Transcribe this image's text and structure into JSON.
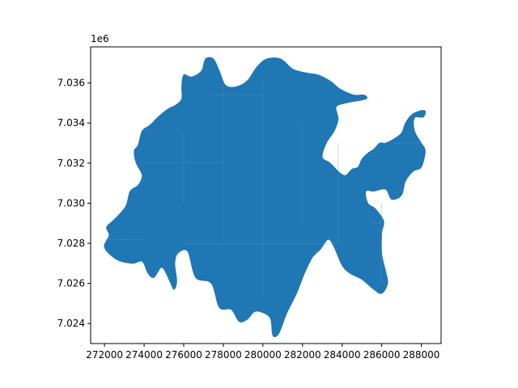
{
  "figure": {
    "offset_text": "1e6",
    "fill_color": "#1f77b4",
    "tile_line_color": "#5a9bc9",
    "axes_color": "#000000",
    "background": "#ffffff"
  },
  "chart_data": {
    "type": "map",
    "title": "",
    "xlabel": "",
    "ylabel": "",
    "xlim": [
      271300,
      289000
    ],
    "ylim": [
      7.023,
      7.0378
    ],
    "y_offset_text": "1e6",
    "x_ticks": [
      {
        "value": 272000,
        "label": "272000"
      },
      {
        "value": 274000,
        "label": "274000"
      },
      {
        "value": 276000,
        "label": "276000"
      },
      {
        "value": 278000,
        "label": "278000"
      },
      {
        "value": 280000,
        "label": "280000"
      },
      {
        "value": 282000,
        "label": "282000"
      },
      {
        "value": 284000,
        "label": "284000"
      },
      {
        "value": 286000,
        "label": "286000"
      },
      {
        "value": 288000,
        "label": "288000"
      }
    ],
    "y_ticks": [
      {
        "value": 7.024,
        "label": "7.024"
      },
      {
        "value": 7.026,
        "label": "7.026"
      },
      {
        "value": 7.028,
        "label": "7.028"
      },
      {
        "value": 7.03,
        "label": "7.030"
      },
      {
        "value": 7.032,
        "label": "7.032"
      },
      {
        "value": 7.034,
        "label": "7.034"
      },
      {
        "value": 7.036,
        "label": "7.036"
      }
    ],
    "region": {
      "name": "region-polygon",
      "boundary_xy": [
        [
          272230,
          7.0284
        ],
        [
          272500,
          7.0288
        ],
        [
          273200,
          7.0284
        ],
        [
          273900,
          7.0283
        ],
        [
          274300,
          7.0286
        ],
        [
          274450,
          7.0291
        ],
        [
          274420,
          7.0299
        ],
        [
          274150,
          7.0304
        ],
        [
          274100,
          7.031
        ],
        [
          274330,
          7.0315
        ],
        [
          274450,
          7.0323
        ],
        [
          274250,
          7.0326
        ],
        [
          273800,
          7.0325
        ],
        [
          273750,
          7.032
        ],
        [
          273900,
          7.0314
        ],
        [
          274000,
          7.0307
        ],
        [
          273900,
          7.0299
        ],
        [
          273850,
          7.0295
        ],
        [
          274200,
          7.0291
        ],
        [
          274000,
          7.0288
        ],
        [
          273300,
          7.0287
        ],
        [
          272500,
          7.0282
        ]
      ],
      "outline_xy": [
        [
          272230,
          7.0284
        ],
        [
          272000,
          7.0278
        ],
        [
          272600,
          7.0272
        ],
        [
          273400,
          7.027
        ],
        [
          273900,
          7.0271
        ],
        [
          274200,
          7.0265
        ],
        [
          274500,
          7.0263
        ],
        [
          274900,
          7.0268
        ],
        [
          275300,
          7.0261
        ],
        [
          275500,
          7.0257
        ],
        [
          275650,
          7.0261
        ],
        [
          275550,
          7.027
        ],
        [
          275700,
          7.0275
        ],
        [
          276200,
          7.0276
        ],
        [
          276600,
          7.0263
        ],
        [
          277400,
          7.026
        ],
        [
          277800,
          7.0248
        ],
        [
          278400,
          7.0247
        ],
        [
          278800,
          7.0241
        ],
        [
          279200,
          7.0242
        ],
        [
          279600,
          7.0246
        ],
        [
          280100,
          7.0245
        ],
        [
          280400,
          7.0242
        ],
        [
          280500,
          7.0234
        ],
        [
          280800,
          7.0235
        ],
        [
          281200,
          7.0245
        ],
        [
          281700,
          7.0255
        ],
        [
          282100,
          7.0265
        ],
        [
          282500,
          7.0273
        ],
        [
          282900,
          7.0277
        ],
        [
          283300,
          7.0282
        ],
        [
          283600,
          7.0278
        ],
        [
          284000,
          7.0269
        ],
        [
          284400,
          7.0265
        ],
        [
          285000,
          7.0262
        ],
        [
          285600,
          7.0257
        ],
        [
          286000,
          7.0255
        ],
        [
          286300,
          7.026
        ],
        [
          286200,
          7.0266
        ],
        [
          286000,
          7.0275
        ],
        [
          286000,
          7.0285
        ],
        [
          286100,
          7.0291
        ],
        [
          285700,
          7.0297
        ],
        [
          285300,
          7.03
        ],
        [
          285200,
          7.0306
        ],
        [
          285600,
          7.0306
        ],
        [
          286200,
          7.0307
        ],
        [
          286500,
          7.0302
        ],
        [
          287000,
          7.0304
        ],
        [
          287200,
          7.0311
        ],
        [
          287600,
          7.0316
        ],
        [
          288000,
          7.0318
        ],
        [
          288200,
          7.0326
        ],
        [
          288000,
          7.033
        ],
        [
          287700,
          7.0335
        ],
        [
          287600,
          7.034
        ],
        [
          287700,
          7.0343
        ],
        [
          288100,
          7.0343
        ],
        [
          288200,
          7.0346
        ],
        [
          287900,
          7.0346
        ],
        [
          287500,
          7.0344
        ],
        [
          287200,
          7.034
        ],
        [
          287000,
          7.0335
        ],
        [
          286600,
          7.0332
        ],
        [
          286200,
          7.033
        ],
        [
          285900,
          7.033
        ],
        [
          285600,
          7.0327
        ],
        [
          285300,
          7.0325
        ],
        [
          285000,
          7.0322
        ],
        [
          284800,
          7.0318
        ],
        [
          284500,
          7.0317
        ],
        [
          284200,
          7.0314
        ],
        [
          283900,
          7.0315
        ],
        [
          283400,
          7.032
        ],
        [
          283000,
          7.0323
        ],
        [
          283200,
          7.033
        ],
        [
          283600,
          7.0336
        ],
        [
          283800,
          7.0342
        ],
        [
          283700,
          7.0348
        ],
        [
          284200,
          7.035
        ],
        [
          285200,
          7.0352
        ],
        [
          285100,
          7.0354
        ],
        [
          284600,
          7.0354
        ],
        [
          283900,
          7.0357
        ],
        [
          283400,
          7.0361
        ],
        [
          282800,
          7.0364
        ],
        [
          282200,
          7.0365
        ],
        [
          281500,
          7.0367
        ],
        [
          280900,
          7.0372
        ],
        [
          280200,
          7.0372
        ],
        [
          279700,
          7.0368
        ],
        [
          279200,
          7.0361
        ],
        [
          278600,
          7.0358
        ],
        [
          278100,
          7.0359
        ],
        [
          277800,
          7.0366
        ],
        [
          277500,
          7.0372
        ],
        [
          277100,
          7.0372
        ],
        [
          276900,
          7.0366
        ],
        [
          276400,
          7.0363
        ],
        [
          276000,
          7.0364
        ],
        [
          275900,
          7.0358
        ],
        [
          275900,
          7.0352
        ],
        [
          275600,
          7.0349
        ],
        [
          275200,
          7.0347
        ],
        [
          274700,
          7.0343
        ],
        [
          274300,
          7.0339
        ],
        [
          273900,
          7.0336
        ],
        [
          273700,
          7.0329
        ],
        [
          273500,
          7.0326
        ],
        [
          273600,
          7.032
        ],
        [
          273900,
          7.0314
        ],
        [
          273700,
          7.0309
        ],
        [
          273300,
          7.0306
        ],
        [
          273100,
          7.0299
        ],
        [
          272800,
          7.0295
        ],
        [
          272400,
          7.0291
        ],
        [
          272100,
          7.0288
        ]
      ]
    }
  }
}
